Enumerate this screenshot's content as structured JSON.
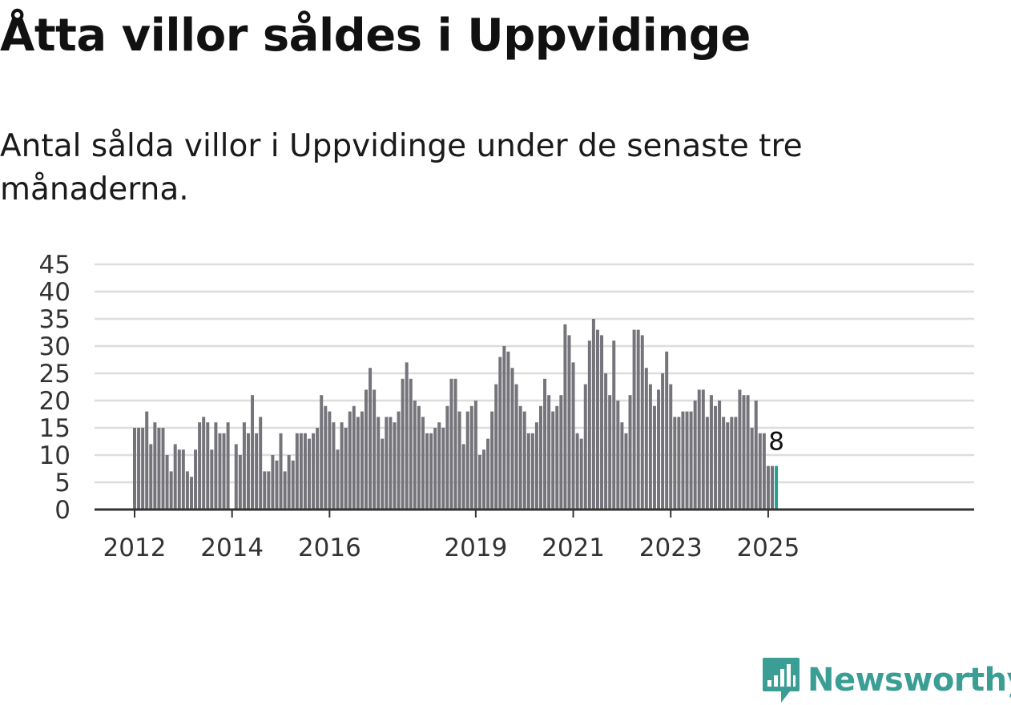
{
  "title": "Åtta villor såldes i Uppvidinge",
  "subtitle": "Antal sålda villor i Uppvidinge under de senaste tre månaderna.",
  "logo": {
    "icon": "newsworthy-logo-icon",
    "text": "Newsworthy"
  },
  "colors": {
    "bar": "#75747a",
    "highlight": "#23a094",
    "grid": "#dddddd",
    "axis": "#333333",
    "brand": "#3a9e95"
  },
  "chart_data": {
    "type": "bar",
    "start_month": "2012-01",
    "frequency": "monthly",
    "values": [
      15,
      15,
      15,
      18,
      12,
      16,
      15,
      15,
      10,
      7,
      12,
      11,
      11,
      7,
      6,
      11,
      16,
      17,
      16,
      11,
      16,
      14,
      14,
      16,
      0,
      12,
      10,
      16,
      14,
      21,
      14,
      17,
      7,
      7,
      10,
      9,
      14,
      7,
      10,
      9,
      14,
      14,
      14,
      13,
      14,
      15,
      21,
      19,
      18,
      16,
      11,
      16,
      15,
      18,
      19,
      17,
      18,
      22,
      26,
      22,
      17,
      13,
      17,
      17,
      16,
      18,
      24,
      27,
      24,
      20,
      19,
      17,
      14,
      14,
      15,
      16,
      15,
      19,
      24,
      24,
      18,
      12,
      18,
      19,
      20,
      10,
      11,
      13,
      18,
      23,
      28,
      30,
      29,
      26,
      23,
      19,
      18,
      14,
      14,
      16,
      19,
      24,
      21,
      18,
      19,
      21,
      34,
      32,
      27,
      14,
      13,
      23,
      31,
      35,
      33,
      32,
      25,
      21,
      31,
      20,
      16,
      14,
      21,
      33,
      33,
      32,
      26,
      23,
      19,
      22,
      25,
      29,
      23,
      17,
      17,
      18,
      18,
      18,
      20,
      22,
      22,
      17,
      21,
      19,
      20,
      17,
      16,
      17,
      17,
      22,
      21,
      21,
      15,
      20,
      14,
      14,
      8,
      8,
      8
    ],
    "highlight_value": 8,
    "highlight_label": "8",
    "yticks": [
      0,
      5,
      10,
      15,
      20,
      25,
      30,
      35,
      40,
      45
    ],
    "ylim": [
      0,
      45
    ],
    "xticks": [
      {
        "label": "2012",
        "month": "2012-01"
      },
      {
        "label": "2014",
        "month": "2014-01"
      },
      {
        "label": "2016",
        "month": "2016-01"
      },
      {
        "label": "2019",
        "month": "2019-01"
      },
      {
        "label": "2021",
        "month": "2021-01"
      },
      {
        "label": "2023",
        "month": "2023-01"
      },
      {
        "label": "2025",
        "month": "2025-01"
      }
    ],
    "grid": true
  }
}
